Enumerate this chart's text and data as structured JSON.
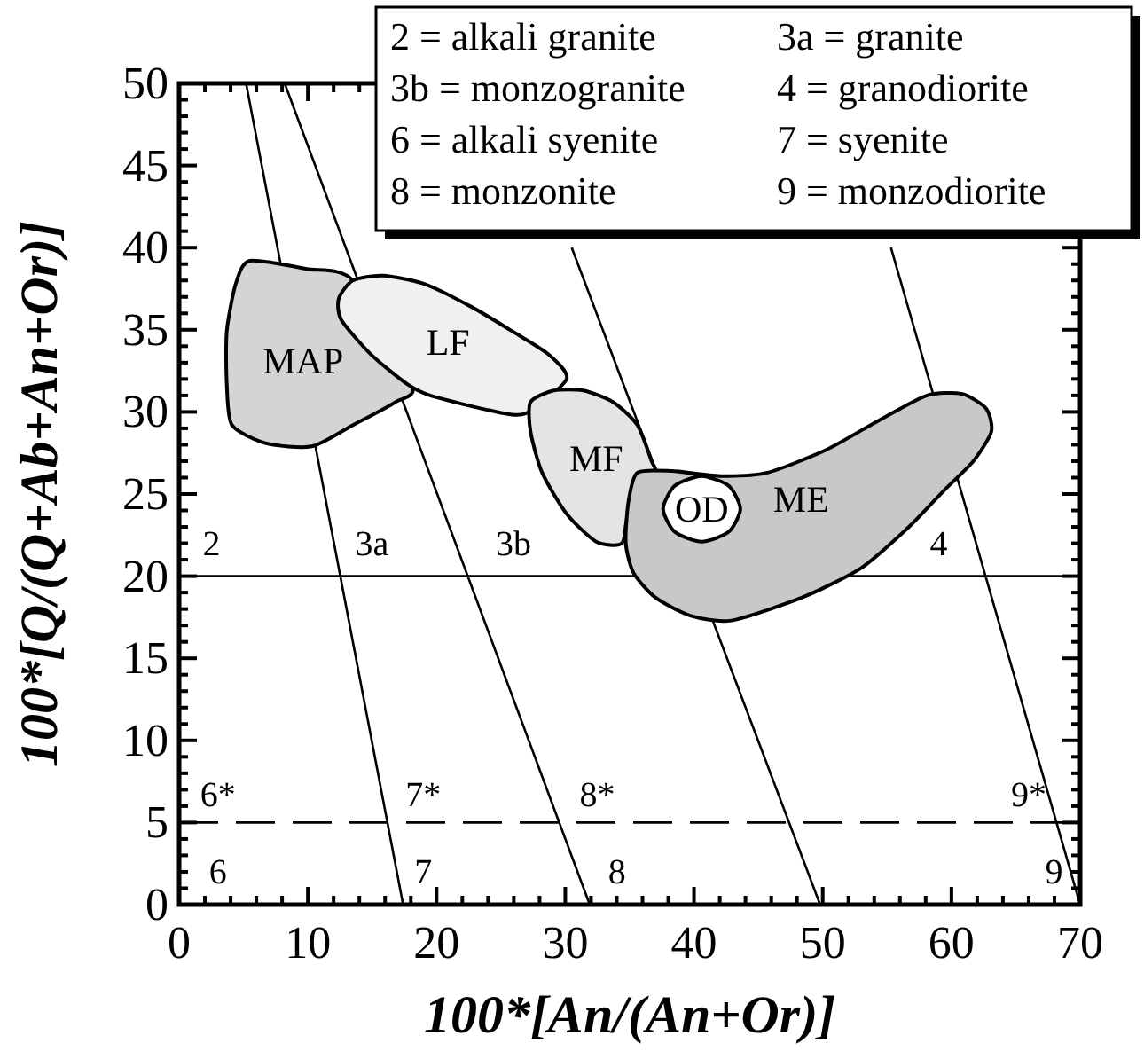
{
  "chart_data": {
    "type": "line",
    "xlabel": "100*[An/(An+Or)]",
    "ylabel": "100*[Q/(Q+Ab+An+Or)]",
    "xlim": [
      0,
      70
    ],
    "ylim": [
      0,
      50
    ],
    "xticks": [
      0,
      {
        "value": 2,
        "label": null
      },
      {
        "value": 4,
        "label": null
      },
      {
        "value": 6,
        "label": null
      },
      {
        "value": 8,
        "label": null
      },
      10,
      {
        "value": 12,
        "label": null
      },
      {
        "value": 14,
        "label": null
      },
      {
        "value": 16,
        "label": null
      },
      {
        "value": 18,
        "label": null
      },
      20,
      {
        "value": 22,
        "label": null
      },
      {
        "value": 24,
        "label": null
      },
      {
        "value": 26,
        "label": null
      },
      {
        "value": 28,
        "label": null
      },
      30,
      {
        "value": 32,
        "label": null
      },
      {
        "value": 34,
        "label": null
      },
      {
        "value": 36,
        "label": null
      },
      {
        "value": 38,
        "label": null
      },
      40,
      {
        "value": 42,
        "label": null
      },
      {
        "value": 44,
        "label": null
      },
      {
        "value": 46,
        "label": null
      },
      {
        "value": 48,
        "label": null
      },
      50,
      {
        "value": 52,
        "label": null
      },
      {
        "value": 54,
        "label": null
      },
      {
        "value": 56,
        "label": null
      },
      {
        "value": 58,
        "label": null
      },
      60,
      {
        "value": 62,
        "label": null
      },
      {
        "value": 64,
        "label": null
      },
      {
        "value": 66,
        "label": null
      },
      {
        "value": 68,
        "label": null
      },
      70
    ],
    "yticks": [
      0,
      {
        "value": 1,
        "label": null
      },
      {
        "value": 2,
        "label": null
      },
      {
        "value": 3,
        "label": null
      },
      {
        "value": 4,
        "label": null
      },
      5,
      {
        "value": 6,
        "label": null
      },
      {
        "value": 7,
        "label": null
      },
      {
        "value": 8,
        "label": null
      },
      {
        "value": 9,
        "label": null
      },
      10,
      {
        "value": 11,
        "label": null
      },
      {
        "value": 12,
        "label": null
      },
      {
        "value": 13,
        "label": null
      },
      {
        "value": 14,
        "label": null
      },
      15,
      {
        "value": 16,
        "label": null
      },
      {
        "value": 17,
        "label": null
      },
      {
        "value": 18,
        "label": null
      },
      {
        "value": 19,
        "label": null
      },
      20,
      {
        "value": 21,
        "label": null
      },
      {
        "value": 22,
        "label": null
      },
      {
        "value": 23,
        "label": null
      },
      {
        "value": 24,
        "label": null
      },
      25,
      {
        "value": 26,
        "label": null
      },
      {
        "value": 27,
        "label": null
      },
      {
        "value": 28,
        "label": null
      },
      {
        "value": 29,
        "label": null
      },
      30,
      {
        "value": 31,
        "label": null
      },
      {
        "value": 32,
        "label": null
      },
      {
        "value": 33,
        "label": null
      },
      {
        "value": 34,
        "label": null
      },
      35,
      {
        "value": 36,
        "label": null
      },
      {
        "value": 37,
        "label": null
      },
      {
        "value": 38,
        "label": null
      },
      {
        "value": 39,
        "label": null
      },
      40,
      {
        "value": 41,
        "label": null
      },
      {
        "value": 42,
        "label": null
      },
      {
        "value": 43,
        "label": null
      },
      {
        "value": 44,
        "label": null
      },
      45,
      {
        "value": 46,
        "label": null
      },
      {
        "value": 47,
        "label": null
      },
      {
        "value": 48,
        "label": null
      },
      {
        "value": 49,
        "label": null
      },
      50
    ],
    "series": [
      {
        "color": "#000000",
        "x": [
          5.2,
          17.4
        ],
        "values": [
          50,
          0
        ]
      },
      {
        "color": "#000000",
        "x": [
          8.2,
          31.9
        ],
        "values": [
          50,
          0
        ]
      },
      {
        "color": "#000000",
        "x": [
          30.5,
          49.8
        ],
        "values": [
          40,
          0
        ]
      },
      {
        "color": "#000000",
        "x": [
          55.3,
          70
        ],
        "values": [
          40,
          0
        ]
      },
      {
        "type": "area",
        "name": "MAP",
        "color": "#d4d4d4",
        "x": [
          5.5,
          4.4,
          3.7,
          3.7,
          4.1,
          6.7,
          10.3,
          13.5,
          16.8,
          18.1,
          15,
          13.5,
          9.9
        ],
        "values": [
          39.2,
          37.8,
          34.9,
          31.7,
          29.2,
          28.1,
          27.9,
          29.2,
          30.6,
          31.7,
          null,
          38,
          38.7
        ]
      },
      {
        "type": "area",
        "name": "LF",
        "color": "#f0f0f0",
        "x": [
          13.5,
          15.8,
          19,
          22.7,
          25.9,
          28.7,
          30.1,
          29.6,
          26.9,
          24.1,
          19.5,
          17.7,
          14.9,
          12.6,
          12.4
        ],
        "values": [
          38,
          38.3,
          37.8,
          36.4,
          34.9,
          33.5,
          32,
          null,
          29.9,
          30.1,
          31,
          31.7,
          33.5,
          35.6,
          36.9
        ]
      },
      {
        "type": "area",
        "name": "MF",
        "color": "#e4e4e4",
        "x": [
          27.3,
          29.1,
          31.4,
          33.7,
          35.6,
          36.7,
          36.9,
          35.6,
          34.9,
          34.4,
          32.4,
          30.1,
          28.2,
          27.3
        ],
        "values": [
          30.6,
          31.3,
          31.3,
          30.6,
          29.2,
          27,
          26.3,
          null,
          23.8,
          22,
          22.1,
          23.8,
          26.3,
          28.8
        ]
      },
      {
        "type": "area",
        "name": "ME",
        "color": "#c8c8c8",
        "x": [
          35.6,
          38.3,
          42,
          45.7,
          50.3,
          54.4,
          58.1,
          60.8,
          62.7,
          63.1,
          61.7,
          59.4,
          56.7,
          53,
          48.4,
          42.9,
          39.7,
          37,
          35.3,
          34.7,
          34.9
        ],
        "values": [
          26.3,
          26.4,
          26.1,
          26.3,
          27.7,
          29.5,
          31,
          31.1,
          30.2,
          28.8,
          27,
          25.2,
          23,
          20.5,
          18.7,
          17.3,
          17.6,
          18.7,
          20.2,
          22,
          24.5
        ]
      },
      {
        "type": "area",
        "name": "OD",
        "color": "#ffffff",
        "x": [
          37.6,
          38.5,
          40.6,
          42.7,
          43.6,
          42.7,
          40.6,
          38.5
        ],
        "values": [
          24.1,
          25.5,
          26.1,
          25.5,
          24.1,
          22.7,
          22.1,
          22.7
        ]
      }
    ],
    "ref_lines": [
      {
        "axis": "y",
        "value": 20,
        "line_style": "solid"
      },
      {
        "axis": "y",
        "value": 5,
        "line_style": "dashed"
      }
    ],
    "annotations": [
      "2 = alkali granite",
      "3a = granite",
      "3b = monzogranite",
      "4 = granodiorite",
      "6 = alkali syenite",
      "7 = syenite",
      "8 = monzonite",
      "9 = monzodiorite",
      "2",
      "3a",
      "3b",
      "4",
      "6*",
      "7*",
      "8*",
      "9*",
      "6",
      "7",
      "8",
      "9"
    ]
  }
}
